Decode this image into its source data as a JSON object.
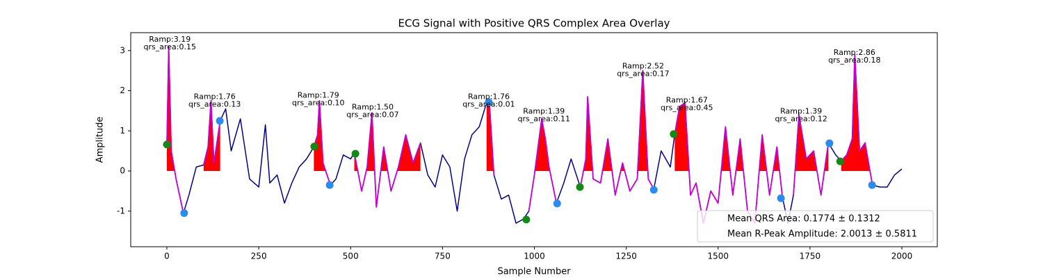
{
  "chart_data": {
    "type": "ecg",
    "title": "ECG Signal with Positive QRS Complex Area Overlay",
    "xlabel": "Sample Number",
    "ylabel": "Amplitude",
    "xlim": [
      -98.4,
      2096.5
    ],
    "xticks": [
      0,
      250,
      500,
      750,
      1000,
      1250,
      1500,
      1750,
      2000
    ],
    "ylim": [
      -1.887,
      3.446
    ],
    "yticks": [
      -1,
      0,
      1,
      2,
      3
    ],
    "signal": {
      "color": "#00008b",
      "x": [
        0,
        5,
        12,
        25,
        45,
        60,
        80,
        100,
        112,
        120,
        128,
        145,
        160,
        175,
        200,
        225,
        250,
        268,
        280,
        300,
        320,
        340,
        360,
        380,
        400,
        410,
        415,
        425,
        445,
        460,
        480,
        500,
        510,
        530,
        545,
        558,
        570,
        590,
        610,
        630,
        650,
        670,
        690,
        710,
        730,
        750,
        770,
        790,
        810,
        830,
        850,
        870,
        878,
        890,
        910,
        930,
        950,
        970,
        985,
        1000,
        1020,
        1030,
        1040,
        1060,
        1080,
        1100,
        1125,
        1140,
        1145,
        1160,
        1180,
        1200,
        1220,
        1240,
        1260,
        1280,
        1295,
        1310,
        1325,
        1345,
        1370,
        1382,
        1395,
        1410,
        1425,
        1440,
        1460,
        1480,
        1500,
        1520,
        1540,
        1560,
        1580,
        1600,
        1620,
        1640,
        1660,
        1675,
        1690,
        1705,
        1720,
        1740,
        1760,
        1780,
        1800,
        1820,
        1835,
        1850,
        1865,
        1872,
        1885,
        1900,
        1920,
        1940,
        1960,
        1980,
        2000
      ],
      "values": [
        0.65,
        3.1,
        0.5,
        -0.2,
        -1.05,
        -0.6,
        0.1,
        0.15,
        0.6,
        1.75,
        0.2,
        1.25,
        1.55,
        0.5,
        1.3,
        -0.2,
        -0.4,
        1.15,
        -0.3,
        -0.1,
        -0.8,
        -0.3,
        0.1,
        0.3,
        0.6,
        0.9,
        1.75,
        0.2,
        -0.35,
        -0.2,
        0.4,
        0.3,
        0.45,
        -0.5,
        0.1,
        1.45,
        -0.9,
        0.6,
        -0.5,
        0.1,
        0.9,
        0.2,
        0.7,
        -0.1,
        -0.4,
        0.4,
        0.1,
        -1.0,
        0.3,
        0.9,
        1.1,
        1.7,
        1.65,
        -0.1,
        -0.7,
        -0.6,
        -1.3,
        -1.2,
        -1.0,
        -0.1,
        1.3,
        0.8,
        0.1,
        -0.8,
        -0.3,
        0.3,
        -0.4,
        0.3,
        1.85,
        -0.2,
        -0.3,
        0.8,
        -0.6,
        0.2,
        -0.5,
        -0.2,
        2.5,
        -0.2,
        -0.45,
        0.5,
        0.1,
        0.92,
        1.6,
        1.7,
        -0.6,
        -0.3,
        -1.3,
        -0.5,
        -0.8,
        1.1,
        -0.6,
        0.8,
        -1.0,
        -1.3,
        0.9,
        -0.6,
        0.6,
        -0.65,
        -1.3,
        -0.6,
        1.4,
        0.3,
        0.5,
        -0.6,
        0.7,
        0.4,
        0.25,
        0.4,
        0.8,
        2.9,
        0.5,
        0.7,
        -0.35,
        -0.4,
        -0.4,
        -0.1,
        0.05
      ]
    },
    "qrs_segments": {
      "color": "#c800d8",
      "fill": "#ff0000",
      "segments": [
        {
          "x": [
            0,
            5,
            12,
            25,
            45
          ],
          "values": [
            0.65,
            3.1,
            0.5,
            -0.2,
            -1.05
          ]
        },
        {
          "x": [
            100,
            112,
            120,
            128,
            145
          ],
          "values": [
            0.15,
            0.6,
            1.75,
            0.2,
            1.25
          ]
        },
        {
          "x": [
            400,
            410,
            415,
            425,
            445
          ],
          "values": [
            0.6,
            0.9,
            1.75,
            0.2,
            -0.35
          ]
        },
        {
          "x": [
            510,
            530,
            545,
            558,
            570,
            590,
            610,
            630,
            650,
            670,
            690
          ],
          "values": [
            0.45,
            -0.5,
            0.1,
            1.45,
            -0.9,
            0.6,
            -0.5,
            0.1,
            0.9,
            0.2,
            0.7
          ]
        },
        {
          "x": [
            870,
            878,
            890
          ],
          "values": [
            1.7,
            1.65,
            -0.1
          ]
        },
        {
          "x": [
            985,
            1000,
            1020,
            1030,
            1040,
            1060
          ],
          "values": [
            -1.0,
            -0.1,
            1.3,
            0.8,
            0.1,
            -0.8
          ]
        },
        {
          "x": [
            1125,
            1140,
            1145,
            1160,
            1180,
            1200,
            1220,
            1240,
            1260,
            1280,
            1295,
            1310,
            1325
          ],
          "values": [
            -0.4,
            0.3,
            1.85,
            -0.2,
            -0.3,
            0.8,
            -0.6,
            0.2,
            -0.5,
            -0.2,
            2.5,
            -0.2,
            -0.45
          ]
        },
        {
          "x": [
            1382,
            1395,
            1410,
            1425,
            1440,
            1460,
            1480,
            1500,
            1520,
            1540,
            1560,
            1580,
            1600,
            1620,
            1640,
            1660,
            1675
          ],
          "values": [
            0.92,
            1.6,
            1.7,
            -0.6,
            -0.3,
            -1.3,
            -0.5,
            -0.8,
            1.1,
            -0.6,
            0.8,
            -1.0,
            -1.3,
            0.9,
            -0.6,
            0.6,
            -0.65
          ]
        },
        {
          "x": [
            1705,
            1720,
            1740,
            1760,
            1780,
            1800
          ],
          "values": [
            -0.6,
            1.4,
            0.3,
            0.5,
            -0.6,
            0.7
          ]
        },
        {
          "x": [
            1835,
            1850,
            1865,
            1872,
            1885,
            1900,
            1920
          ],
          "values": [
            0.25,
            0.4,
            0.8,
            2.9,
            0.5,
            0.7,
            -0.35
          ]
        }
      ]
    },
    "onsets": {
      "color": "#138a13",
      "x": [
        0,
        401,
        513,
        978,
        1124,
        1379,
        1832
      ],
      "values": [
        0.66,
        0.61,
        0.43,
        -1.21,
        -0.4,
        0.92,
        0.24
      ]
    },
    "offsets": {
      "color": "#2a8cf0",
      "x": [
        47,
        144,
        443,
        876,
        1062,
        1325,
        1671,
        1803,
        1919
      ],
      "values": [
        -1.05,
        1.25,
        -0.35,
        1.71,
        -0.81,
        -0.47,
        -0.68,
        0.69,
        -0.35
      ]
    },
    "annotations": [
      {
        "x": 8,
        "y": 3.19,
        "text": [
          "Ramp:3.19",
          "qrs_area:0.15"
        ]
      },
      {
        "x": 130,
        "y": 1.76,
        "text": [
          "Ramp:1.76",
          "qrs_area:0.13"
        ]
      },
      {
        "x": 412,
        "y": 1.79,
        "text": [
          "Ramp:1.79",
          "qrs_area:0.10"
        ]
      },
      {
        "x": 560,
        "y": 1.5,
        "text": [
          "Ramp:1.50",
          "qrs_area:0.07"
        ]
      },
      {
        "x": 876,
        "y": 1.76,
        "text": [
          "Ramp:1.76",
          "qrs_area:0.01"
        ]
      },
      {
        "x": 1026,
        "y": 1.39,
        "text": [
          "Ramp:1.39",
          "qrs_area:0.11"
        ]
      },
      {
        "x": 1296,
        "y": 2.52,
        "text": [
          "Ramp:2.52",
          "qrs_area:0.17"
        ]
      },
      {
        "x": 1415,
        "y": 1.67,
        "text": [
          "Ramp:1.67",
          "qrs_area:0.45"
        ]
      },
      {
        "x": 1726,
        "y": 1.39,
        "text": [
          "Ramp:1.39",
          "qrs_area:0.12"
        ]
      },
      {
        "x": 1871,
        "y": 2.86,
        "text": [
          "Ramp:2.86",
          "qrs_area:0.18"
        ]
      }
    ],
    "legend": {
      "loc": "lower right",
      "entries": [
        "Mean QRS Area: 0.1774 ± 0.1312",
        "Mean R-Peak Amplitude: 2.0013 ± 0.5811"
      ]
    }
  }
}
